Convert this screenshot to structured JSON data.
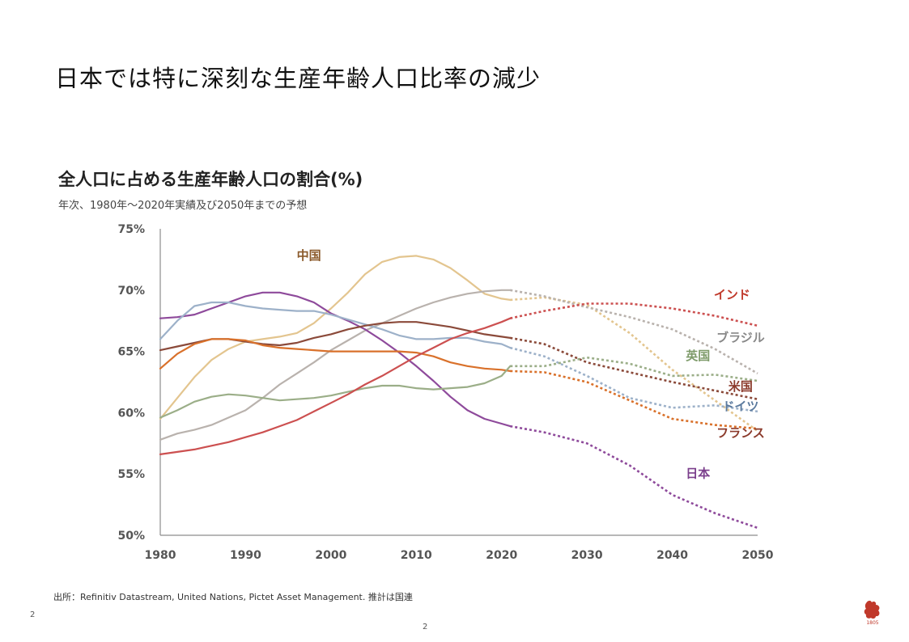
{
  "slide": {
    "title": "日本では特に深刻な生産年齢人口比率の減少",
    "source": "出所：Refinitiv Datastream, United Nations, Pictet Asset Management.  推計は国連",
    "page_left": "2",
    "page_center": "2",
    "logo_text": "1805"
  },
  "chart_data": {
    "type": "line",
    "title": "全人口に占める生産年齢人口の割合(%)",
    "subtitle": "年次、1980年～2020年実績及び2050年までの予想",
    "xlabel": "",
    "ylabel": "",
    "xlim": [
      1980,
      2050
    ],
    "ylim": [
      50,
      75
    ],
    "xticks": [
      1980,
      1990,
      2000,
      2010,
      2020,
      2030,
      2040,
      2050
    ],
    "yticks": [
      {
        "value": 50,
        "label": "50%"
      },
      {
        "value": 55,
        "label": "55%"
      },
      {
        "value": 60,
        "label": "60%"
      },
      {
        "value": 65,
        "label": "65%"
      },
      {
        "value": 70,
        "label": "70%"
      },
      {
        "value": 75,
        "label": "75%"
      }
    ],
    "actual_through": 2021,
    "series": [
      {
        "key": "china",
        "name": "中国",
        "color": "#E3C58F",
        "label_color": "#8B5A2B",
        "label_at": [
          1996,
          72.5
        ],
        "label_anchor": "start",
        "x": [
          1980,
          1982,
          1984,
          1986,
          1988,
          1990,
          1992,
          1994,
          1996,
          1998,
          2000,
          2002,
          2004,
          2006,
          2008,
          2010,
          2012,
          2014,
          2016,
          2018,
          2020,
          2021,
          2025,
          2030,
          2035,
          2040,
          2045,
          2050
        ],
        "y": [
          59.5,
          61.2,
          62.9,
          64.3,
          65.2,
          65.8,
          66.0,
          66.2,
          66.5,
          67.3,
          68.5,
          69.8,
          71.3,
          72.3,
          72.7,
          72.8,
          72.5,
          71.8,
          70.8,
          69.7,
          69.3,
          69.2,
          69.4,
          68.8,
          66.5,
          63.5,
          61.0,
          58.5
        ]
      },
      {
        "key": "brazil",
        "name": "ブラジル",
        "color": "#B9B2AD",
        "label_color": "#888888",
        "label_at": [
          2048,
          65.8
        ],
        "label_anchor": "middle",
        "x": [
          1980,
          1982,
          1984,
          1986,
          1988,
          1990,
          1992,
          1994,
          1996,
          1998,
          2000,
          2002,
          2004,
          2006,
          2008,
          2010,
          2012,
          2014,
          2016,
          2018,
          2020,
          2021,
          2025,
          2030,
          2035,
          2040,
          2045,
          2050
        ],
        "y": [
          57.8,
          58.3,
          58.6,
          59.0,
          59.6,
          60.2,
          61.2,
          62.3,
          63.2,
          64.1,
          65.1,
          65.9,
          66.7,
          67.3,
          67.9,
          68.5,
          69.0,
          69.4,
          69.7,
          69.9,
          70.0,
          70.0,
          69.5,
          68.6,
          67.8,
          66.8,
          65.2,
          63.2
        ]
      },
      {
        "key": "japan",
        "name": "日本",
        "color": "#8E4A9B",
        "label_color": "#7B3F8C",
        "label_at": [
          2043,
          54.7
        ],
        "label_anchor": "middle",
        "x": [
          1980,
          1982,
          1984,
          1986,
          1988,
          1990,
          1992,
          1994,
          1996,
          1998,
          2000,
          2002,
          2004,
          2006,
          2008,
          2010,
          2012,
          2014,
          2016,
          2018,
          2020,
          2021,
          2025,
          2030,
          2035,
          2040,
          2045,
          2050
        ],
        "y": [
          67.7,
          67.8,
          68.0,
          68.5,
          69.0,
          69.5,
          69.8,
          69.8,
          69.5,
          69.0,
          68.1,
          67.5,
          66.8,
          65.9,
          64.9,
          63.8,
          62.6,
          61.3,
          60.2,
          59.5,
          59.1,
          58.9,
          58.4,
          57.5,
          55.7,
          53.3,
          51.8,
          50.6
        ]
      },
      {
        "key": "germany",
        "name": "ドイツ",
        "color": "#9DB1C9",
        "label_color": "#5B7A9E",
        "label_at": [
          2048,
          60.2
        ],
        "label_anchor": "middle",
        "x": [
          1980,
          1982,
          1984,
          1986,
          1988,
          1990,
          1992,
          1994,
          1996,
          1998,
          2000,
          2002,
          2004,
          2006,
          2008,
          2010,
          2012,
          2014,
          2016,
          2018,
          2020,
          2021,
          2025,
          2030,
          2035,
          2040,
          2045,
          2050
        ],
        "y": [
          66.0,
          67.5,
          68.7,
          69.0,
          69.0,
          68.7,
          68.5,
          68.4,
          68.3,
          68.3,
          68.0,
          67.6,
          67.2,
          66.8,
          66.3,
          66.0,
          66.0,
          66.1,
          66.1,
          65.8,
          65.6,
          65.3,
          64.6,
          63.0,
          61.2,
          60.4,
          60.6,
          60.1
        ]
      },
      {
        "key": "usa",
        "name": "米国",
        "color": "#8B4A3A",
        "label_color": "#8B3A2B",
        "label_at": [
          2048,
          61.8
        ],
        "label_anchor": "middle",
        "x": [
          1980,
          1982,
          1984,
          1986,
          1988,
          1990,
          1992,
          1994,
          1996,
          1998,
          2000,
          2002,
          2004,
          2006,
          2008,
          2010,
          2012,
          2014,
          2016,
          2018,
          2020,
          2021,
          2025,
          2030,
          2035,
          2040,
          2045,
          2050
        ],
        "y": [
          65.1,
          65.4,
          65.7,
          66.0,
          66.0,
          65.8,
          65.6,
          65.5,
          65.7,
          66.1,
          66.4,
          66.8,
          67.1,
          67.3,
          67.4,
          67.4,
          67.2,
          67.0,
          66.7,
          66.4,
          66.2,
          66.1,
          65.6,
          64.1,
          63.3,
          62.5,
          61.8,
          61.1
        ]
      },
      {
        "key": "france",
        "name": "フランス",
        "color": "#D9712B",
        "label_color": "#8B3A2B",
        "label_at": [
          2048,
          58.0
        ],
        "label_anchor": "middle",
        "x": [
          1980,
          1982,
          1984,
          1986,
          1988,
          1990,
          1992,
          1994,
          1996,
          1998,
          2000,
          2002,
          2004,
          2006,
          2008,
          2010,
          2012,
          2014,
          2016,
          2018,
          2020,
          2021,
          2025,
          2030,
          2035,
          2040,
          2045,
          2050
        ],
        "y": [
          63.6,
          64.8,
          65.6,
          66.0,
          66.0,
          65.9,
          65.5,
          65.3,
          65.2,
          65.1,
          65.0,
          65.0,
          65.0,
          65.0,
          65.0,
          64.9,
          64.6,
          64.1,
          63.8,
          63.6,
          63.5,
          63.4,
          63.3,
          62.5,
          61.0,
          59.5,
          59.0,
          58.7
        ]
      },
      {
        "key": "uk",
        "name": "英国",
        "color": "#9BAE88",
        "label_color": "#7E9B6A",
        "label_at": [
          2043,
          64.3
        ],
        "label_anchor": "middle",
        "x": [
          1980,
          1982,
          1984,
          1986,
          1988,
          1990,
          1992,
          1994,
          1996,
          1998,
          2000,
          2002,
          2004,
          2006,
          2008,
          2010,
          2012,
          2014,
          2016,
          2018,
          2020,
          2021,
          2025,
          2030,
          2035,
          2040,
          2045,
          2050
        ],
        "y": [
          59.6,
          60.2,
          60.9,
          61.3,
          61.5,
          61.4,
          61.2,
          61.0,
          61.1,
          61.2,
          61.4,
          61.7,
          62.0,
          62.2,
          62.2,
          62.0,
          61.9,
          62.0,
          62.1,
          62.4,
          63.0,
          63.8,
          63.8,
          64.5,
          64.0,
          63.0,
          63.1,
          62.6
        ]
      },
      {
        "key": "india",
        "name": "インド",
        "color": "#CC5050",
        "label_color": "#C0392B",
        "label_at": [
          2047,
          69.3
        ],
        "label_anchor": "middle",
        "x": [
          1980,
          1982,
          1984,
          1986,
          1988,
          1990,
          1992,
          1994,
          1996,
          1998,
          2000,
          2002,
          2004,
          2006,
          2008,
          2010,
          2012,
          2014,
          2016,
          2018,
          2020,
          2021,
          2025,
          2030,
          2035,
          2040,
          2045,
          2050
        ],
        "y": [
          56.6,
          56.8,
          57.0,
          57.3,
          57.6,
          58.0,
          58.4,
          58.9,
          59.4,
          60.1,
          60.8,
          61.5,
          62.3,
          63.0,
          63.8,
          64.6,
          65.3,
          66.0,
          66.5,
          66.9,
          67.4,
          67.7,
          68.3,
          68.9,
          68.9,
          68.5,
          67.9,
          67.1
        ]
      }
    ]
  }
}
